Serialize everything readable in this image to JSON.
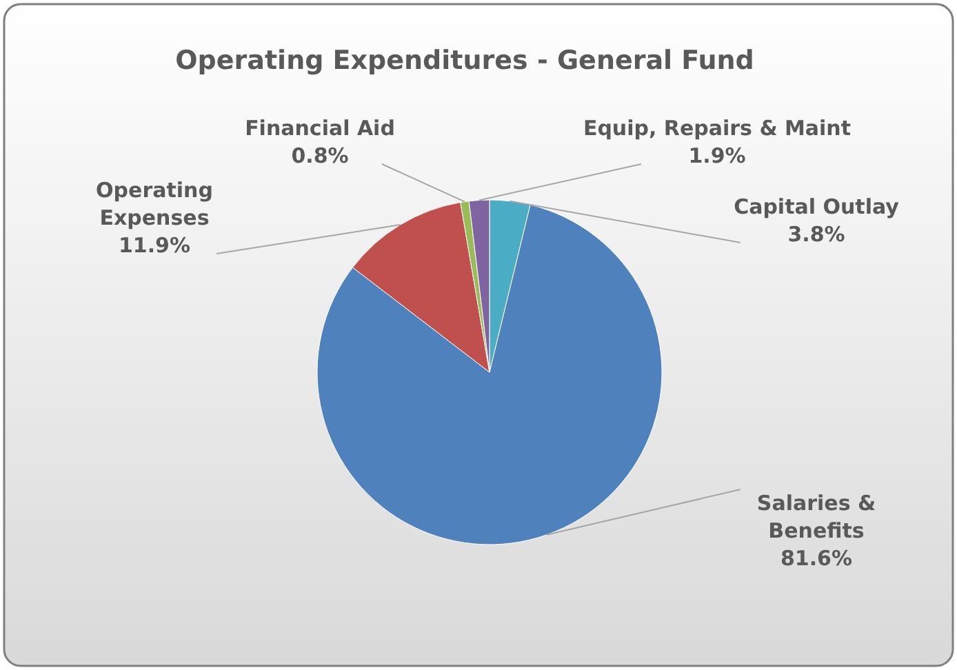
{
  "chart_data": {
    "type": "pie",
    "title": "Operating Expenditures - General Fund",
    "categories": [
      "Capital Outlay",
      "Salaries & Benefits",
      "Operating Expenses",
      "Financial Aid",
      "Equip, Repairs & Maint"
    ],
    "values": [
      3.8,
      81.6,
      11.9,
      0.8,
      1.9
    ],
    "colors": [
      "#4bacc6",
      "#4f81bd",
      "#c0504d",
      "#9bbb59",
      "#8064a2"
    ],
    "value_labels": [
      "3.8%",
      "81.6%",
      "11.9%",
      "0.8%",
      "1.9%"
    ]
  }
}
